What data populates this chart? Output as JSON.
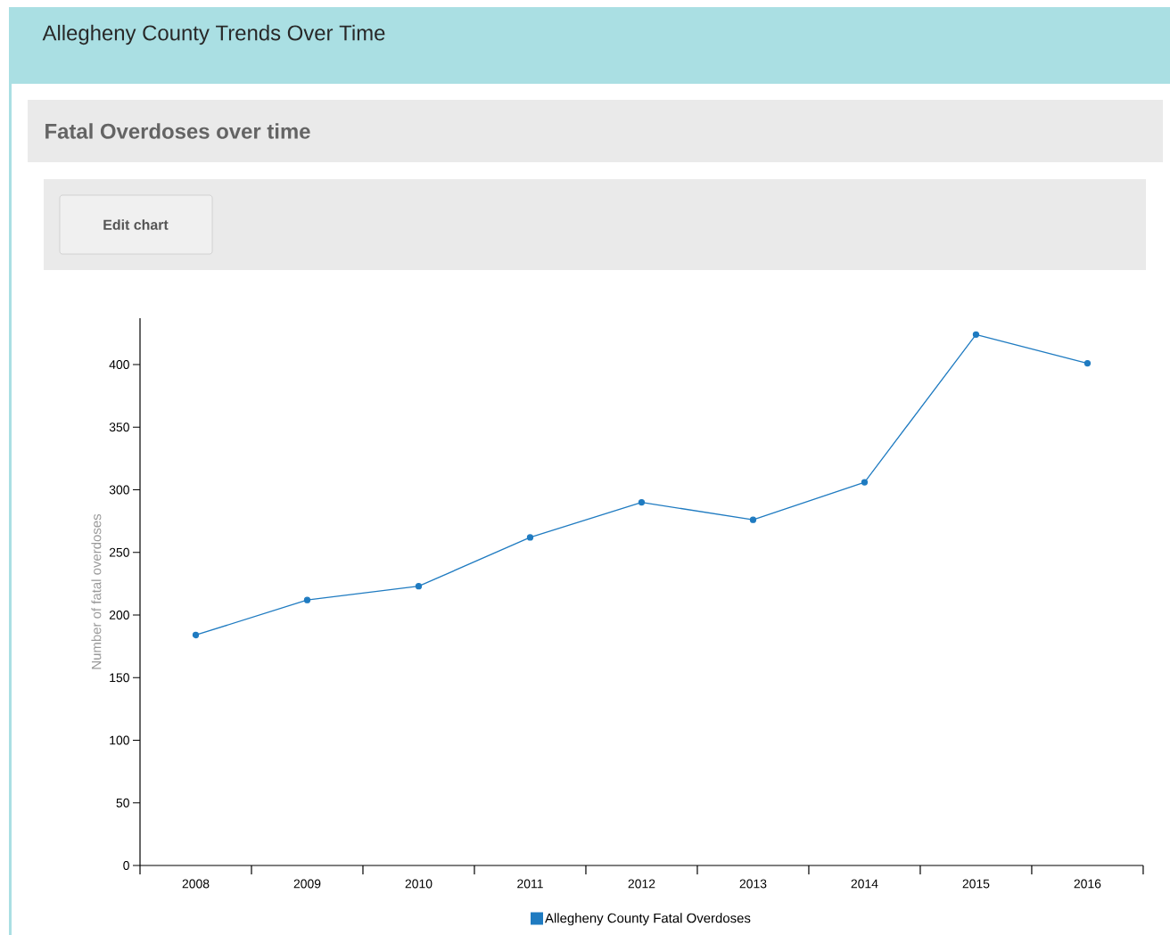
{
  "chart_data": {
    "type": "line",
    "title": "Allegheny County Trends Over Time",
    "subtitle": "Fatal Overdoses over time",
    "ylabel": "Number of fatal overdoses",
    "categories": [
      "2008",
      "2009",
      "2010",
      "2011",
      "2012",
      "2013",
      "2014",
      "2015",
      "2016"
    ],
    "series": [
      {
        "name": "Allegheny County Fatal Overdoses",
        "color": "#1f7bc1",
        "values": [
          184,
          212,
          223,
          262,
          290,
          276,
          306,
          424,
          401
        ]
      }
    ],
    "ylim": [
      0,
      437
    ],
    "yticks": [
      0,
      50,
      100,
      150,
      200,
      250,
      300,
      350,
      400
    ],
    "marker": "circle",
    "legend": "bottom",
    "annotations": [
      "Edit chart"
    ]
  }
}
